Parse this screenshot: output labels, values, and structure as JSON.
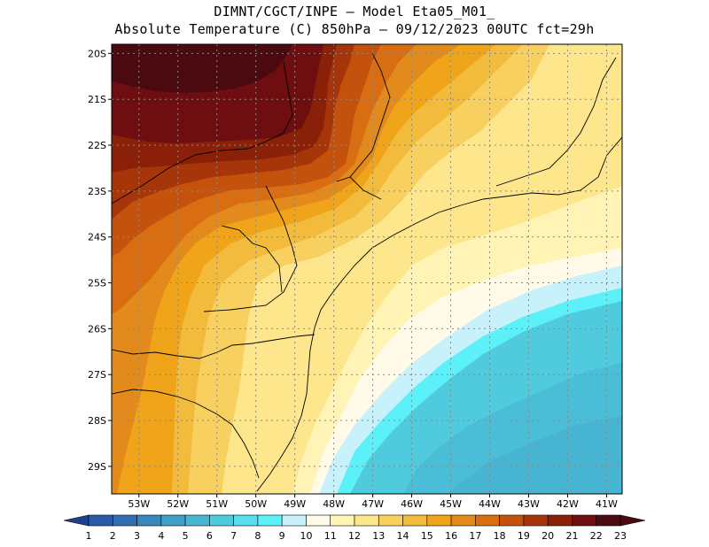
{
  "title": {
    "line1": "DIMNT/CGCT/INPE –  Model Eta05_M01_",
    "line2": "Absolute Temperature (C) 850hPa –  09/12/2023 00UTC fct=29h"
  },
  "map": {
    "lat_labels": [
      "20S",
      "21S",
      "22S",
      "23S",
      "24S",
      "25S",
      "26S",
      "27S",
      "28S",
      "29S"
    ],
    "lon_labels": [
      "53W",
      "52W",
      "51W",
      "50W",
      "49W",
      "48W",
      "47W",
      "46W",
      "45W",
      "44W",
      "43W",
      "42W",
      "41W"
    ],
    "extent": {
      "lon_min": -53.7,
      "lon_max": -40.6,
      "lat_min": -29.6,
      "lat_max": -19.8
    },
    "regions": [
      {
        "name": "far-northwest-max",
        "level": 23
      },
      {
        "name": "interior-north-hot",
        "level": 22
      },
      {
        "name": "interior-band",
        "level": 21
      },
      {
        "name": "west-warm",
        "level": 19
      },
      {
        "name": "central-warm",
        "level": 17
      },
      {
        "name": "coastal-mild",
        "level": 15
      },
      {
        "name": "coastal-cool",
        "level": 13
      },
      {
        "name": "ocean-southeast",
        "level": 9
      },
      {
        "name": "ocean-cold-core",
        "level": 8
      }
    ]
  },
  "colorbar": {
    "labels": [
      "1",
      "2",
      "3",
      "4",
      "5",
      "6",
      "7",
      "8",
      "9",
      "10",
      "11",
      "12",
      "13",
      "14",
      "15",
      "16",
      "17",
      "18",
      "19",
      "20",
      "21",
      "22",
      "23"
    ],
    "colors": [
      "#1f3f8f",
      "#2a5aa8",
      "#3170b0",
      "#3a87bd",
      "#3f9fc7",
      "#47b6d2",
      "#50cbde",
      "#58def0",
      "#5cf0f8",
      "#c8f2fb",
      "#fffbe8",
      "#fff4b5",
      "#fde68c",
      "#f8d060",
      "#f2bb3c",
      "#f0a41a",
      "#e38a1c",
      "#d96d12",
      "#c4520c",
      "#a6360a",
      "#8a2008",
      "#6e0e10",
      "#4a0a10"
    ]
  }
}
